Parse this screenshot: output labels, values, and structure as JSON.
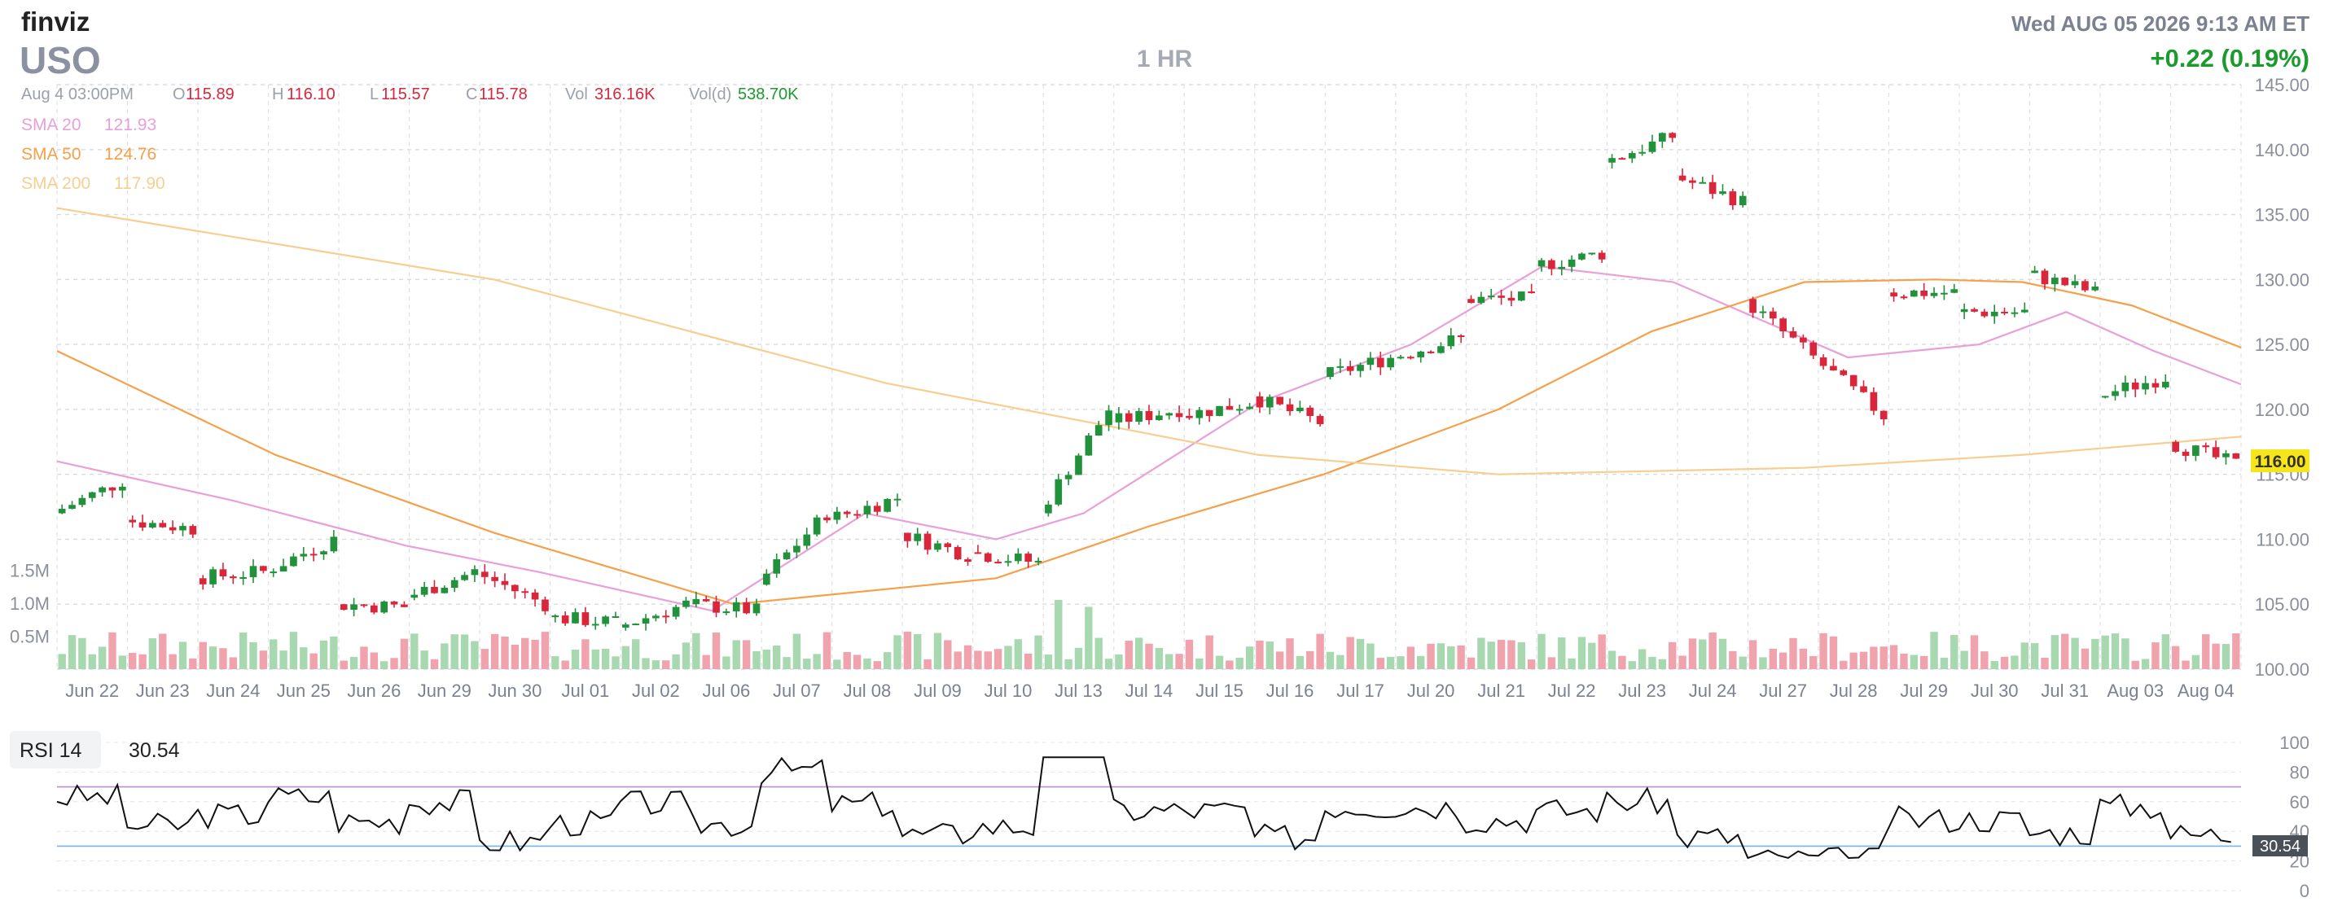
{
  "header": {
    "logo": "finviz",
    "ticker": "USO",
    "timeframe": "1 HR",
    "datetime": "Wed AUG 05 2026 9:13 AM ET",
    "change": "+0.22 (0.19%)"
  },
  "ohlc": {
    "date": "Aug 4 03:00PM",
    "open_label": "O",
    "open": "115.89",
    "high_label": "H",
    "high": "116.10",
    "low_label": "L",
    "low": "115.57",
    "close_label": "C",
    "close": "115.78",
    "vol_label": "Vol",
    "vol": "316.16K",
    "vold_label": "Vol(d)",
    "vold": "538.70K"
  },
  "sma_legend": [
    {
      "label": "SMA 20",
      "value": "121.93",
      "color": "#e8a0d8"
    },
    {
      "label": "SMA 50",
      "value": "124.76",
      "color": "#f5a04a"
    },
    {
      "label": "SMA 200",
      "value": "117.90",
      "color": "#f6cf90"
    }
  ],
  "colors": {
    "up": "#22913c",
    "down": "#d9263b",
    "up_vol": "#a8d8b0",
    "down_vol": "#f0a3ad",
    "rsi_fill": "#d28fe0"
  },
  "last_price_label": "116.00",
  "rsi": {
    "label": "RSI 14",
    "value": "30.54",
    "last_label": "30.54"
  },
  "chart_data": {
    "type": "candlestick",
    "timeframe": "1 HR",
    "categories": [
      "Jun 22",
      "Jun 23",
      "Jun 24",
      "Jun 25",
      "Jun 26",
      "Jun 29",
      "Jun 30",
      "Jul 01",
      "Jul 02",
      "Jul 06",
      "Jul 07",
      "Jul 08",
      "Jul 09",
      "Jul 10",
      "Jul 13",
      "Jul 14",
      "Jul 15",
      "Jul 16",
      "Jul 17",
      "Jul 20",
      "Jul 21",
      "Jul 22",
      "Jul 23",
      "Jul 24",
      "Jul 27",
      "Jul 28",
      "Jul 29",
      "Jul 30",
      "Jul 31",
      "Aug 03",
      "Aug 04"
    ],
    "yticks": [
      "100.00",
      "105.00",
      "110.00",
      "115.00",
      "120.00",
      "125.00",
      "130.00",
      "135.00",
      "140.00",
      "145.00"
    ],
    "ylim": [
      100,
      145
    ],
    "volume_ticks": [
      "0.5M",
      "1.0M",
      "1.5M"
    ],
    "daily_close_path": [
      [
        112.0,
        114.5
      ],
      [
        111.5,
        110.8
      ],
      [
        107.0,
        107.5
      ],
      [
        107.5,
        110.0
      ],
      [
        105.0,
        104.8
      ],
      [
        105.5,
        107.5
      ],
      [
        107.5,
        105.0
      ],
      [
        104.0,
        103.6
      ],
      [
        103.2,
        105.0
      ],
      [
        105.0,
        104.5
      ],
      [
        106.5,
        112.0
      ],
      [
        111.5,
        113.2
      ],
      [
        110.5,
        108.8
      ],
      [
        109.0,
        108.2
      ],
      [
        112.0,
        120.0
      ],
      [
        119.0,
        120.0
      ],
      [
        119.5,
        120.5
      ],
      [
        121.0,
        119.0
      ],
      [
        122.5,
        124.0
      ],
      [
        124.0,
        125.5
      ],
      [
        128.5,
        128.5
      ],
      [
        131.0,
        132.0
      ],
      [
        139.0,
        141.0
      ],
      [
        138.0,
        136.0
      ],
      [
        128.5,
        124.0
      ],
      [
        124.0,
        119.5
      ],
      [
        129.0,
        129.0
      ],
      [
        127.5,
        127.5
      ],
      [
        130.5,
        129.0
      ],
      [
        121.0,
        122.5
      ],
      [
        117.5,
        115.78
      ]
    ],
    "sma": [
      {
        "name": "SMA 20",
        "anchors": [
          [
            0,
            116.0
          ],
          [
            0.08,
            113.0
          ],
          [
            0.16,
            109.5
          ],
          [
            0.22,
            107.5
          ],
          [
            0.3,
            104.5
          ],
          [
            0.37,
            112.0
          ],
          [
            0.43,
            110.0
          ],
          [
            0.47,
            112.0
          ],
          [
            0.55,
            120.5
          ],
          [
            0.62,
            125.0
          ],
          [
            0.68,
            131.0
          ],
          [
            0.74,
            129.8
          ],
          [
            0.82,
            124.0
          ],
          [
            0.88,
            125.0
          ],
          [
            0.92,
            127.5
          ],
          [
            0.96,
            124.5
          ],
          [
            1.0,
            121.93
          ]
        ]
      },
      {
        "name": "SMA 50",
        "anchors": [
          [
            0,
            124.5
          ],
          [
            0.1,
            116.5
          ],
          [
            0.2,
            110.5
          ],
          [
            0.31,
            105.0
          ],
          [
            0.43,
            107.0
          ],
          [
            0.5,
            111.0
          ],
          [
            0.58,
            115.0
          ],
          [
            0.66,
            120.0
          ],
          [
            0.73,
            126.0
          ],
          [
            0.8,
            129.8
          ],
          [
            0.86,
            130.0
          ],
          [
            0.9,
            129.8
          ],
          [
            0.95,
            128.0
          ],
          [
            1.0,
            124.76
          ]
        ]
      },
      {
        "name": "SMA 200",
        "anchors": [
          [
            0,
            135.5
          ],
          [
            0.2,
            130.0
          ],
          [
            0.38,
            122.0
          ],
          [
            0.55,
            116.5
          ],
          [
            0.66,
            115.0
          ],
          [
            0.8,
            115.5
          ],
          [
            0.9,
            116.5
          ],
          [
            1.0,
            117.9
          ]
        ]
      }
    ],
    "rsi": {
      "name": "RSI 14",
      "ylim": [
        0,
        100
      ],
      "yticks": [
        "0",
        "20",
        "40",
        "60",
        "80",
        "100"
      ],
      "levels": [
        30,
        70
      ],
      "last": 30.54
    }
  }
}
